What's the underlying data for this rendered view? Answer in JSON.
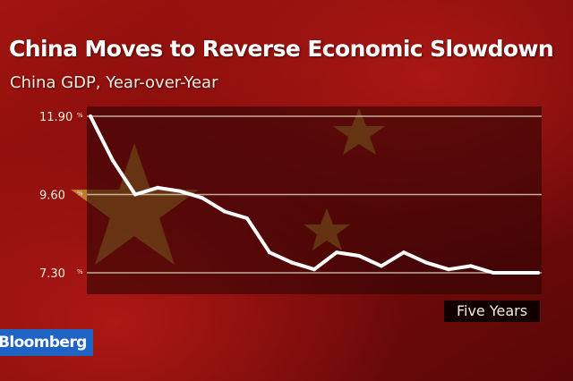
{
  "header": {
    "title": "China Moves to Reverse Economic Slowdown",
    "subtitle": "China GDP, Year-over-Year"
  },
  "footer": {
    "period_label": "Five Years",
    "brand": "Bloomberg"
  },
  "colors": {
    "background_red": "#8e1010",
    "plot_dark": "#2e0303",
    "line": "#ffffff",
    "gridline": "#d9c9b0",
    "brand_blue": "#1f63c4",
    "star_gold": "#c8a135"
  },
  "chart_data": {
    "type": "line",
    "title": "China Moves to Reverse Economic Slowdown",
    "subtitle": "China GDP, Year-over-Year",
    "xlabel": "Five Years",
    "ylabel": "",
    "yticks": [
      {
        "value": 11.9,
        "label": "11.90",
        "unit": "%"
      },
      {
        "value": 9.6,
        "label": "9.60",
        "unit": "%"
      },
      {
        "value": 7.3,
        "label": "7.30",
        "unit": "%"
      }
    ],
    "ylim": [
      7.3,
      11.9
    ],
    "x": [
      1,
      2,
      3,
      4,
      5,
      6,
      7,
      8,
      9,
      10,
      11,
      12,
      13,
      14,
      15,
      16,
      17,
      18,
      19,
      20,
      21
    ],
    "series": [
      {
        "values": [
          11.9,
          10.6,
          9.6,
          9.8,
          9.7,
          9.5,
          9.1,
          8.9,
          7.9,
          7.6,
          7.4,
          7.9,
          7.8,
          7.5,
          7.9,
          7.6,
          7.4,
          7.5,
          7.3,
          7.3,
          7.3
        ]
      }
    ],
    "grid": true,
    "legend": "none"
  }
}
